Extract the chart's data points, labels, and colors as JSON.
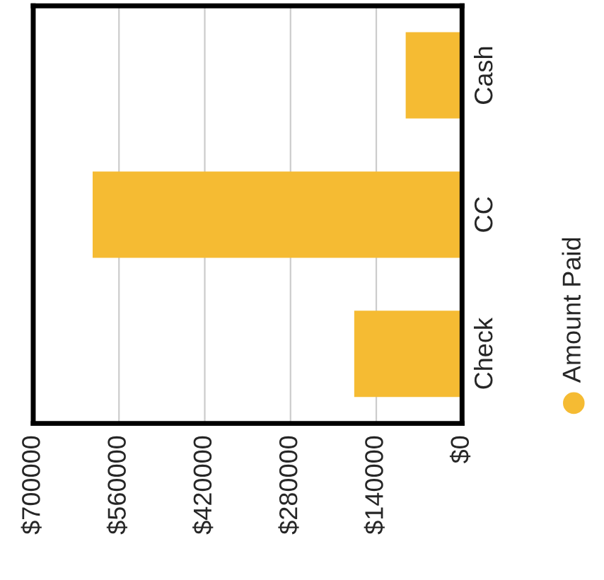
{
  "chart_data": {
    "type": "bar",
    "orientation": "horizontal",
    "categories": [
      "Cash",
      "CC",
      "Check"
    ],
    "series": [
      {
        "name": "Amount Paid",
        "color": "#f5bb33",
        "values": [
          92000,
          603000,
          176000
        ]
      }
    ],
    "xlim": [
      700000,
      0
    ],
    "xticks": [
      {
        "value": 700000,
        "label": "$700000"
      },
      {
        "value": 560000,
        "label": "$560000"
      },
      {
        "value": 420000,
        "label": "$420000"
      },
      {
        "value": 280000,
        "label": "$280000"
      },
      {
        "value": 140000,
        "label": "$140000"
      },
      {
        "value": 0,
        "label": "$0"
      }
    ],
    "grid": "x",
    "legend": "right"
  }
}
